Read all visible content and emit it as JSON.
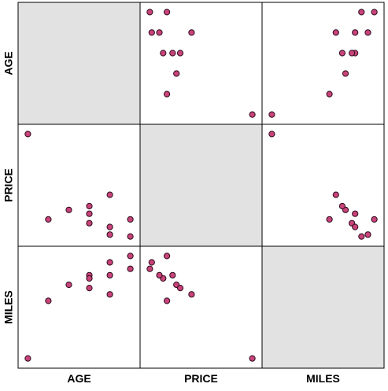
{
  "chart_data": {
    "type": "scatter",
    "title": "",
    "variables": [
      "AGE",
      "PRICE",
      "MILES"
    ],
    "grid": false,
    "style": {
      "point_fill": "#c8437a",
      "point_stroke": "#2b0a1a",
      "diagonal_fill": "#e2e2e2",
      "panel_border": "#000000",
      "background": "#ffffff"
    },
    "points": [
      {
        "AGE": 3,
        "PRICE": 12.5,
        "MILES": 40
      },
      {
        "AGE": 4,
        "PRICE": 13.0,
        "MILES": 45
      },
      {
        "AGE": 5,
        "PRICE": 13.2,
        "MILES": 44
      },
      {
        "AGE": 5,
        "PRICE": 12.8,
        "MILES": 48
      },
      {
        "AGE": 5,
        "PRICE": 12.3,
        "MILES": 47
      },
      {
        "AGE": 6,
        "PRICE": 13.8,
        "MILES": 42
      },
      {
        "AGE": 6,
        "PRICE": 12.1,
        "MILES": 48
      },
      {
        "AGE": 6,
        "PRICE": 11.7,
        "MILES": 52
      },
      {
        "AGE": 7,
        "PRICE": 12.5,
        "MILES": 54
      },
      {
        "AGE": 7,
        "PRICE": 11.6,
        "MILES": 50
      },
      {
        "AGE": 2,
        "PRICE": 17.0,
        "MILES": 22
      }
    ]
  }
}
